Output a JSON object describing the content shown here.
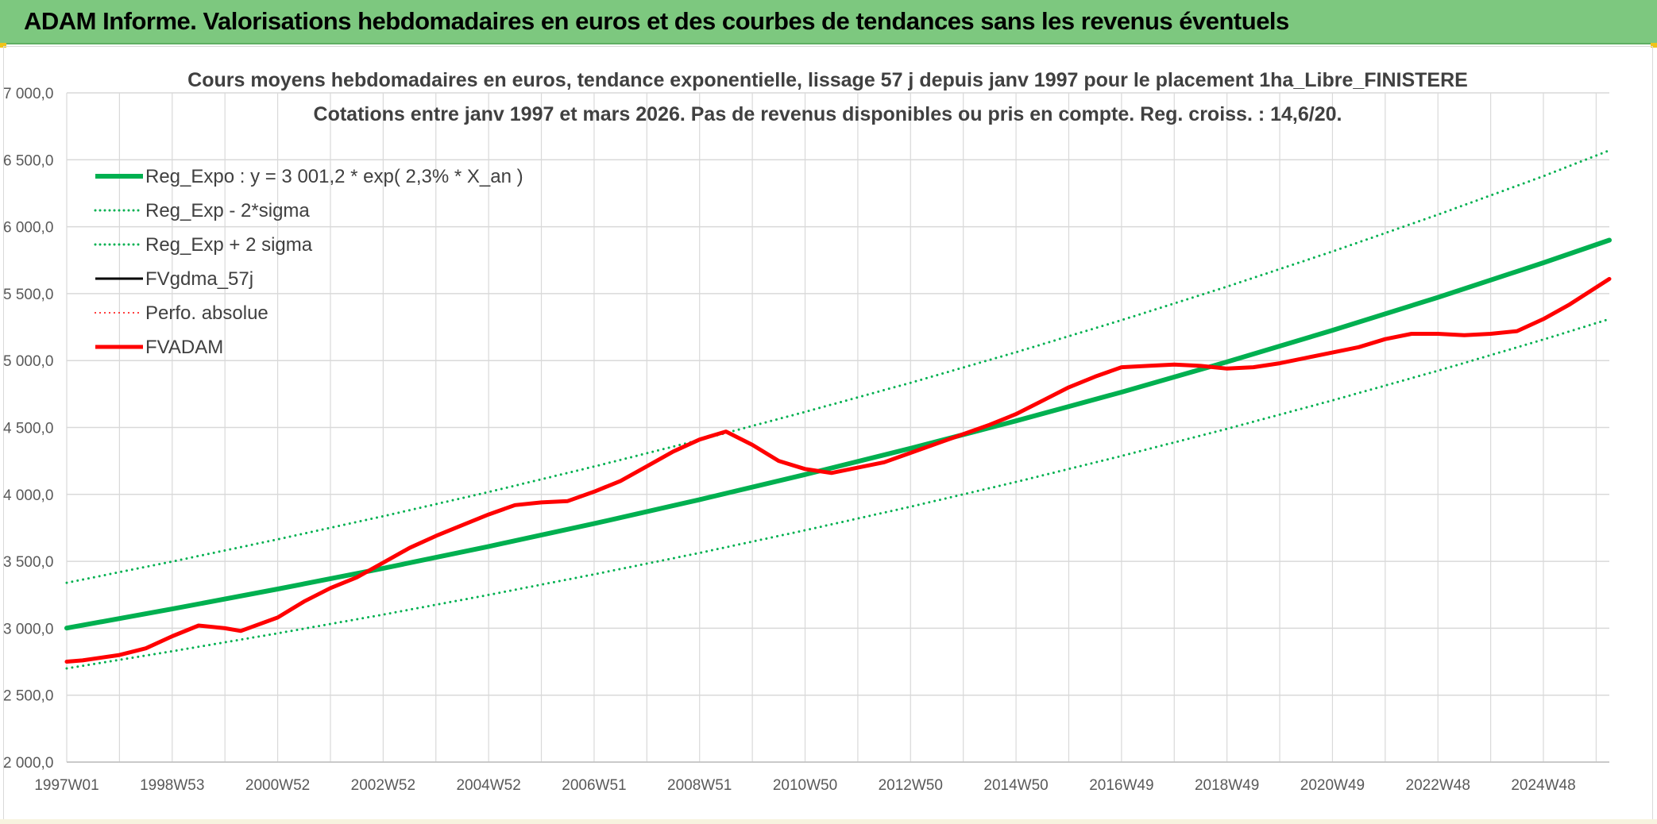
{
  "header": {
    "title": "ADAM Informe. Valorisations hebdomadaires en euros et des courbes de tendances sans les revenus éventuels"
  },
  "colors": {
    "header_bg": "#7dc87f",
    "trend_green": "#00b050",
    "adam_red": "#ff0000",
    "gdma_black": "#000000",
    "grid": "#d9d9d9",
    "title_text": "#404040"
  },
  "chart_data": {
    "type": "line",
    "title": "Cours moyens hebdomadaires en euros, tendance exponentielle, lissage 57 j depuis janv 1997 pour le placement 1ha_Libre_FINISTERE",
    "subtitle": "Cotations entre janv 1997 et mars 2026. Pas de revenus disponibles ou pris en compte. Reg. croiss. : 14,6/20.",
    "xlabel": "",
    "ylabel": "",
    "x_range_years": [
      1997.0,
      2026.25
    ],
    "ylim": [
      2000,
      7000
    ],
    "y_ticks": [
      2000,
      2500,
      3000,
      3500,
      4000,
      4500,
      5000,
      5500,
      6000,
      6500,
      7000
    ],
    "y_tick_labels": [
      "2 000,0",
      "2 500,0",
      "3 000,0",
      "3 500,0",
      "4 000,0",
      "4 500,0",
      "5 000,0",
      "5 500,0",
      "6 000,0",
      "6 500,0",
      "7 000,0"
    ],
    "x_tick_positions": [
      1997.0,
      1999.0,
      2001.0,
      2003.0,
      2005.0,
      2007.0,
      2009.0,
      2011.0,
      2013.0,
      2015.0,
      2017.0,
      2019.0,
      2021.0,
      2023.0,
      2025.0
    ],
    "x_tick_labels": [
      "1997W01",
      "1998W53",
      "2000W52",
      "2002W52",
      "2004W52",
      "2006W51",
      "2008W51",
      "2010W50",
      "2012W50",
      "2014W50",
      "2016W49",
      "2018W49",
      "2020W49",
      "2022W48",
      "2024W48"
    ],
    "grid": true,
    "legend_position": "top-left",
    "series": [
      {
        "name": "Reg_Expo : y = 3 001,2 * exp( 2,3% *  X_an )",
        "color": "#00b050",
        "style": "solid",
        "width": 6,
        "x": [
          1997,
          1999,
          2001,
          2003,
          2005,
          2007,
          2009,
          2011,
          2013,
          2015,
          2017,
          2019,
          2021,
          2023,
          2025,
          2026.25
        ],
        "values": [
          3001,
          3144,
          3293,
          3448,
          3611,
          3782,
          3961,
          4148,
          4344,
          4549,
          4764,
          4990,
          5226,
          5472,
          5731,
          5900
        ]
      },
      {
        "name": "Reg_Exp - 2*sigma",
        "color": "#00b050",
        "style": "dotted",
        "width": 3,
        "x": [
          1997,
          1999,
          2001,
          2003,
          2005,
          2007,
          2009,
          2011,
          2013,
          2015,
          2017,
          2019,
          2021,
          2023,
          2025,
          2026.25
        ],
        "values": [
          2700,
          2828,
          2962,
          3102,
          3249,
          3403,
          3563,
          3732,
          3908,
          4093,
          4287,
          4490,
          4702,
          4924,
          5157,
          5310
        ]
      },
      {
        "name": "Reg_Exp + 2 sigma",
        "color": "#00b050",
        "style": "dotted",
        "width": 3,
        "x": [
          1997,
          1999,
          2001,
          2003,
          2005,
          2007,
          2009,
          2011,
          2013,
          2015,
          2017,
          2019,
          2021,
          2023,
          2025,
          2026.25
        ],
        "values": [
          3340,
          3498,
          3664,
          3837,
          4018,
          4208,
          4407,
          4616,
          4834,
          5062,
          5302,
          5552,
          5815,
          6090,
          6378,
          6570
        ]
      },
      {
        "name": "FVgdma_57j",
        "color": "#000000",
        "style": "solid",
        "width": 3,
        "x": [
          1997.0,
          1997.3,
          1998.0,
          1998.5,
          1999.0,
          1999.5,
          2000.0,
          2000.3,
          2001.0,
          2001.5,
          2002.0,
          2002.5,
          2003.0,
          2003.5,
          2004.0,
          2004.5,
          2005.0,
          2005.5,
          2006.0,
          2006.5,
          2007.0,
          2007.5,
          2008.0,
          2008.5,
          2009.0,
          2009.5,
          2010.0,
          2010.5,
          2011.0,
          2011.5,
          2012.0,
          2012.5,
          2013.0,
          2013.5,
          2014.0,
          2014.5,
          2015.0,
          2015.5,
          2016.0,
          2016.5,
          2017.0,
          2017.5,
          2018.0,
          2018.5,
          2019.0,
          2019.5,
          2020.0,
          2020.5,
          2021.0,
          2021.5,
          2022.0,
          2022.5,
          2023.0,
          2023.5,
          2024.0,
          2024.5,
          2025.0,
          2025.5,
          2026.25
        ],
        "values": [
          2750,
          2760,
          2800,
          2850,
          2940,
          3020,
          3000,
          2980,
          3080,
          3200,
          3300,
          3380,
          3490,
          3600,
          3690,
          3770,
          3850,
          3920,
          3940,
          3950,
          4020,
          4100,
          4210,
          4320,
          4410,
          4470,
          4370,
          4250,
          4190,
          4160,
          4200,
          4240,
          4310,
          4380,
          4450,
          4520,
          4600,
          4700,
          4800,
          4880,
          4950,
          4960,
          4970,
          4960,
          4940,
          4950,
          4980,
          5020,
          5060,
          5100,
          5160,
          5200,
          5200,
          5190,
          5200,
          5220,
          5310,
          5420,
          5610
        ]
      },
      {
        "name": "Perfo. absolue",
        "color": "#ff0000",
        "style": "dotted",
        "width": 2,
        "x": [],
        "values": []
      },
      {
        "name": "FVADAM",
        "color": "#ff0000",
        "style": "solid",
        "width": 5,
        "x": [
          1997.0,
          1997.3,
          1998.0,
          1998.5,
          1999.0,
          1999.5,
          2000.0,
          2000.3,
          2001.0,
          2001.5,
          2002.0,
          2002.5,
          2003.0,
          2003.5,
          2004.0,
          2004.5,
          2005.0,
          2005.5,
          2006.0,
          2006.5,
          2007.0,
          2007.5,
          2008.0,
          2008.5,
          2009.0,
          2009.5,
          2010.0,
          2010.5,
          2011.0,
          2011.5,
          2012.0,
          2012.5,
          2013.0,
          2013.5,
          2014.0,
          2014.5,
          2015.0,
          2015.5,
          2016.0,
          2016.5,
          2017.0,
          2017.5,
          2018.0,
          2018.5,
          2019.0,
          2019.5,
          2020.0,
          2020.5,
          2021.0,
          2021.5,
          2022.0,
          2022.5,
          2023.0,
          2023.5,
          2024.0,
          2024.5,
          2025.0,
          2025.5,
          2026.25
        ],
        "values": [
          2750,
          2760,
          2800,
          2850,
          2940,
          3020,
          3000,
          2980,
          3080,
          3200,
          3300,
          3380,
          3490,
          3600,
          3690,
          3770,
          3850,
          3920,
          3940,
          3950,
          4020,
          4100,
          4210,
          4320,
          4410,
          4470,
          4370,
          4250,
          4190,
          4160,
          4200,
          4240,
          4310,
          4380,
          4450,
          4520,
          4600,
          4700,
          4800,
          4880,
          4950,
          4960,
          4970,
          4960,
          4940,
          4950,
          4980,
          5020,
          5060,
          5100,
          5160,
          5200,
          5200,
          5190,
          5200,
          5220,
          5310,
          5420,
          5610
        ]
      }
    ]
  }
}
